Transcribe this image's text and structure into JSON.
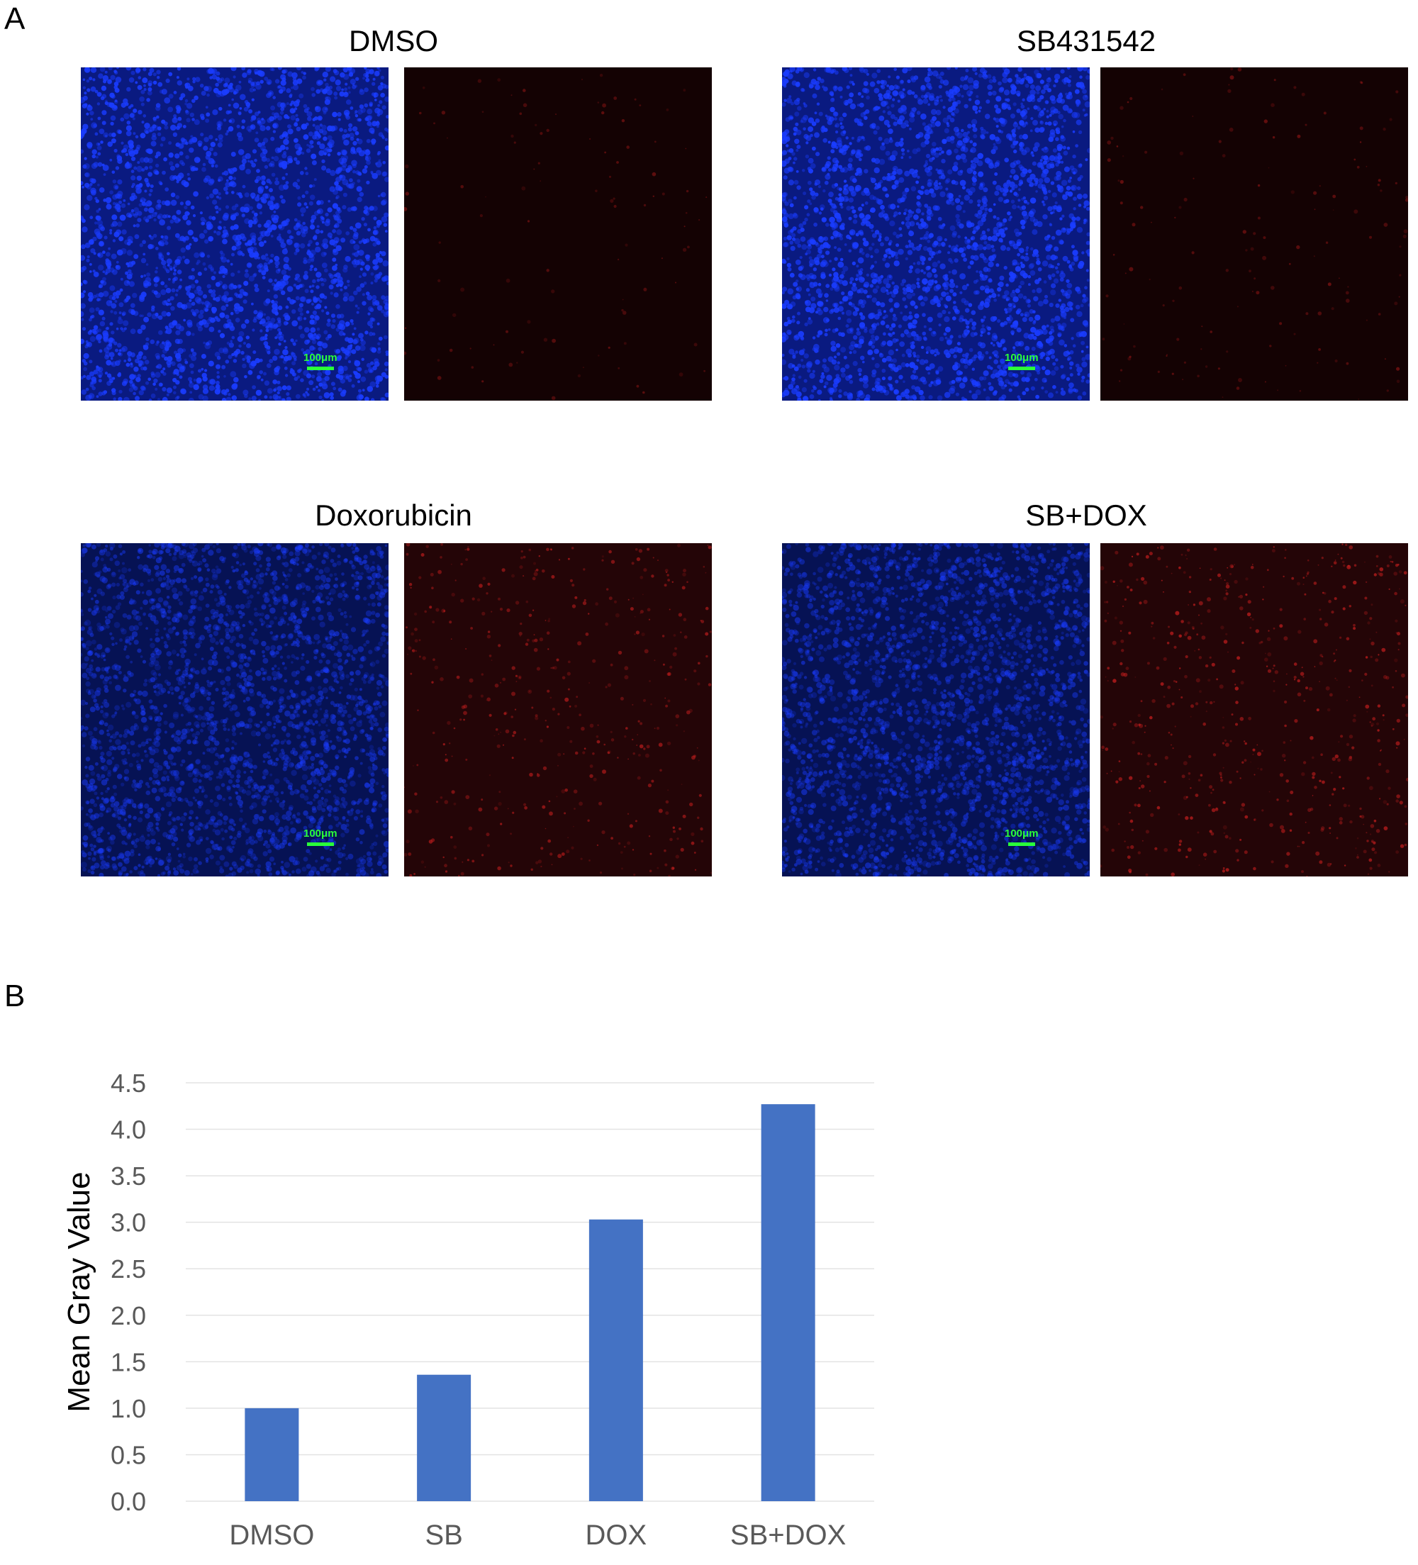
{
  "panels": {
    "a": {
      "letter": "A",
      "groups": [
        {
          "title": "DMSO",
          "scale_label": "100μm",
          "red_level": 0.05
        },
        {
          "title": "SB431542",
          "scale_label": "100μm",
          "red_level": 0.1
        },
        {
          "title": "Doxorubicin",
          "scale_label": "100μm",
          "red_level": 0.45
        },
        {
          "title": "SB+DOX",
          "scale_label": "100μm",
          "red_level": 0.6
        }
      ]
    },
    "b": {
      "letter": "B"
    }
  },
  "colors": {
    "bar": "#4472C4",
    "grid": "#e3e3e3",
    "tick_text": "#595959",
    "dapi": "#1a3cff",
    "red_channel": "#c41e1e",
    "scale_bar": "#2aff3a"
  },
  "chart_data": {
    "type": "bar",
    "categories": [
      "DMSO",
      "SB",
      "DOX",
      "SB+DOX"
    ],
    "values": [
      1.0,
      1.36,
      3.03,
      4.27
    ],
    "yticks": [
      "0.0",
      "0.5",
      "1.0",
      "1.5",
      "2.0",
      "2.5",
      "3.0",
      "3.5",
      "4.0",
      "4.5"
    ],
    "ylim": [
      0,
      4.5
    ],
    "ylabel": "Mean Gray Value",
    "xlabel": "",
    "grid": true
  }
}
